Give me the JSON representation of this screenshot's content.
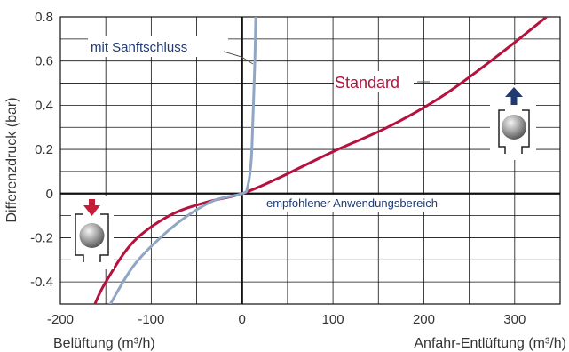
{
  "chart_data": {
    "type": "line",
    "xlabel_left": "Belüftung (m³/h)",
    "xlabel_right": "Anfahr-Entlüftung (m³/h)",
    "ylabel": "Differenzdruck (bar)",
    "xlim": [
      -200,
      350
    ],
    "ylim": [
      -0.5,
      0.8
    ],
    "x_ticks": [
      "-200",
      "-100",
      "0",
      "100",
      "200",
      "300"
    ],
    "x_tick_values": [
      -200,
      -100,
      0,
      100,
      200,
      300
    ],
    "y_ticks": [
      "0.8",
      "0.6",
      "0.4",
      "0.2",
      "0",
      "-0.2",
      "-0.4"
    ],
    "y_tick_values": [
      0.8,
      0.6,
      0.4,
      0.2,
      0,
      -0.2,
      -0.4
    ],
    "grid": true,
    "colors": {
      "standard": "#b5123f",
      "sanftschluss": "#8fa6c5",
      "label_blue": "#1f3b70",
      "arrow_red": "#c41e3a",
      "arrow_blue": "#1f3b70",
      "grid": "#111111"
    },
    "series": [
      {
        "name": "Standard",
        "color": "#b5123f",
        "points": [
          [
            -162,
            -0.5
          ],
          [
            -150,
            -0.4
          ],
          [
            -120,
            -0.22
          ],
          [
            -80,
            -0.1
          ],
          [
            -40,
            -0.04
          ],
          [
            0,
            0
          ],
          [
            40,
            0.07
          ],
          [
            100,
            0.19
          ],
          [
            160,
            0.3
          ],
          [
            220,
            0.44
          ],
          [
            280,
            0.62
          ],
          [
            335,
            0.8
          ]
        ]
      },
      {
        "name": "mit Sanftschluss",
        "color": "#8fa6c5",
        "points": [
          [
            -145,
            -0.5
          ],
          [
            -120,
            -0.33
          ],
          [
            -90,
            -0.2
          ],
          [
            -60,
            -0.1
          ],
          [
            -30,
            -0.03
          ],
          [
            0,
            0
          ],
          [
            6,
            0.03
          ],
          [
            10,
            0.15
          ],
          [
            12,
            0.35
          ],
          [
            14,
            0.6
          ],
          [
            15,
            0.8
          ]
        ]
      }
    ],
    "annotations": {
      "standard_label": "Standard",
      "sanftschluss_label": "mit Sanftschluss",
      "range_label": "empfohlener Anwendungsbereich"
    }
  },
  "icons": [
    "valve-open-down-icon",
    "valve-open-up-icon"
  ]
}
